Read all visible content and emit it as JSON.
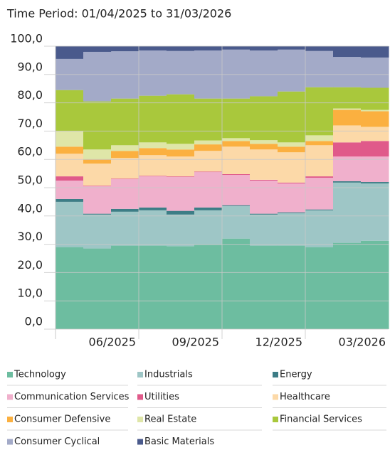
{
  "chart_data": {
    "type": "stacked_step_area",
    "title": "Time Period: 01/04/2025 to 31/03/2026",
    "categories": [
      null,
      null,
      "06/2025",
      null,
      null,
      "09/2025",
      null,
      null,
      "12/2025",
      null,
      null,
      "03/2026"
    ],
    "ylim": [
      0,
      100
    ],
    "yticks": [
      {
        "value": 0,
        "label": "0,0"
      },
      {
        "value": 10,
        "label": "10,0"
      },
      {
        "value": 20,
        "label": "20,0"
      },
      {
        "value": 30,
        "label": "30,0"
      },
      {
        "value": 40,
        "label": "40,0"
      },
      {
        "value": 50,
        "label": "50,0"
      },
      {
        "value": 60,
        "label": "60,0"
      },
      {
        "value": 70,
        "label": "70,0"
      },
      {
        "value": 80,
        "label": "80,0"
      },
      {
        "value": 90,
        "label": "90,0"
      },
      {
        "value": 100,
        "label": "100,0"
      }
    ],
    "grid": true,
    "series": [
      {
        "name": "Technology",
        "color": "#6dbda0",
        "values": [
          29,
          28.5,
          29.5,
          29.5,
          29.3,
          29.8,
          32,
          29.5,
          29.5,
          29,
          30.5,
          31.2
        ]
      },
      {
        "name": "Industrials",
        "color": "#9ec6c6",
        "values": [
          16,
          12,
          12,
          12.5,
          11.2,
          12.2,
          11.5,
          11,
          11.5,
          13,
          21.3,
          20.3
        ]
      },
      {
        "name": "Energy",
        "color": "#3d7d86",
        "values": [
          1,
          0.3,
          1,
          1,
          1.3,
          1,
          0.3,
          0.3,
          0.3,
          0.3,
          0.5,
          0.5
        ]
      },
      {
        "name": "Communication Services",
        "color": "#f0b0cc",
        "values": [
          6.5,
          9.7,
          10.5,
          11,
          12,
          12.5,
          10.7,
          11.7,
          10.2,
          11.2,
          8.7,
          9
        ]
      },
      {
        "name": "Utilities",
        "color": "#e05a8a",
        "values": [
          1.5,
          0.2,
          0.2,
          0.2,
          0.2,
          0.2,
          0.3,
          0.3,
          0.3,
          0.5,
          5,
          5.5
        ]
      },
      {
        "name": "Healthcare",
        "color": "#fcd9a8",
        "values": [
          8,
          7.8,
          7.3,
          7.3,
          7,
          7.3,
          9.7,
          10.7,
          10.7,
          11,
          6,
          5
        ]
      },
      {
        "name": "Consumer Defensive",
        "color": "#fbb040",
        "values": [
          2.5,
          1.5,
          2.5,
          2.5,
          2.5,
          2.3,
          2,
          2,
          2,
          1.5,
          5.5,
          5.5
        ]
      },
      {
        "name": "Real Estate",
        "color": "#dfe6a8",
        "values": [
          5.5,
          3.5,
          2,
          2,
          2,
          1.4,
          1,
          1.3,
          1.5,
          2,
          0.5,
          0.5
        ]
      },
      {
        "name": "Financial Services",
        "color": "#a9c83c",
        "values": [
          14.5,
          17,
          16.5,
          16.5,
          17.5,
          14.8,
          14,
          15.5,
          18,
          17,
          7.5,
          7.8
        ]
      },
      {
        "name": "Consumer Cyclical",
        "color": "#a3aac8",
        "values": [
          11,
          17.5,
          16.7,
          16,
          15.3,
          17,
          17.3,
          16.2,
          14.8,
          12.8,
          10.7,
          10.7
        ]
      },
      {
        "name": "Basic Materials",
        "color": "#4a5a8c",
        "values": [
          4.5,
          2,
          1.8,
          1.5,
          1.7,
          1.5,
          1.2,
          1.5,
          1.2,
          1.7,
          3.8,
          4
        ]
      }
    ]
  }
}
